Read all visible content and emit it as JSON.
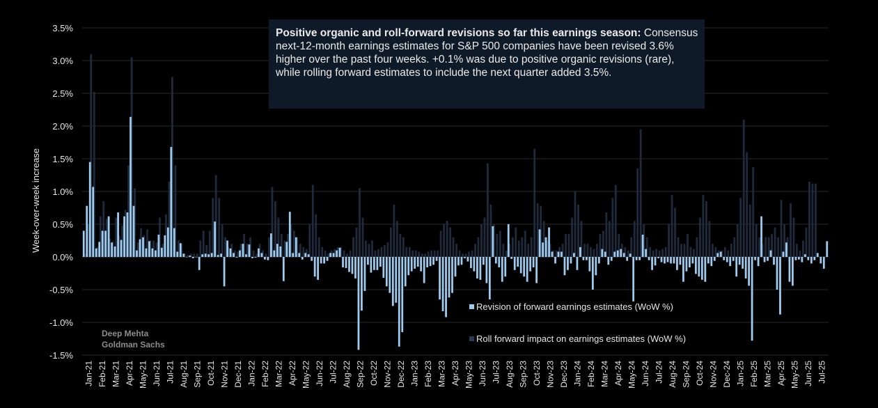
{
  "annotation": {
    "bold": "Positive organic and roll-forward revisions so far this earnings season:",
    "text": " Consensus next-12-month earnings estimates for S&P 500 companies have been revised 3.6% higher over the past four weeks. +0.1% was due to positive organic revisions (rare), while rolling forward estimates to include the next quarter added 3.5%."
  },
  "credit": [
    "Deep Mehta",
    "Goldman Sachs"
  ],
  "colors": {
    "organic": "#9ecbee",
    "rollforward": "#1f2b3c",
    "background": "#000000",
    "gridline": "#2a2a2a"
  },
  "chart_data": {
    "type": "bar",
    "title": "",
    "ylabel": "Week-over-week increase",
    "xlabel": "",
    "ylim": [
      -1.5,
      3.5
    ],
    "yticks": [
      3.5,
      3.0,
      2.5,
      2.0,
      1.5,
      1.0,
      0.5,
      0.0,
      -0.5,
      -1.0,
      -1.5
    ],
    "ytick_labels": [
      "3.5%",
      "3.0%",
      "2.5%",
      "2.0%",
      "1.5%",
      "1.0%",
      "0.5%",
      "0.0%",
      "-0.5%",
      "-1.0%",
      "-1.5%"
    ],
    "x_tick_labels": [
      "Jan-21",
      "Feb-21",
      "Mar-21",
      "Apr-21",
      "May-21",
      "Jun-21",
      "Jul-21",
      "Aug-21",
      "Sep-21",
      "Oct-21",
      "Nov-21",
      "Dec-21",
      "Jan-22",
      "Feb-22",
      "Mar-22",
      "Apr-22",
      "May-22",
      "Jun-22",
      "Jul-22",
      "Aug-22",
      "Sep-22",
      "Oct-22",
      "Nov-22",
      "Dec-22",
      "Jan-23",
      "Feb-23",
      "Mar-23",
      "Apr-23",
      "May-23",
      "Jun-23",
      "Jul-23",
      "Aug-23",
      "Sep-23",
      "Oct-23",
      "Nov-23",
      "Dec-23",
      "Jan-24",
      "Feb-24",
      "Mar-24",
      "Apr-24",
      "May-24",
      "Jun-24",
      "Jul-24",
      "Aug-24",
      "Sep-24",
      "Oct-24",
      "Nov-24",
      "Dec-24",
      "Jan-25",
      "Feb-25",
      "Mar-25",
      "Apr-25",
      "May-25",
      "Jun-25",
      "Jul-25"
    ],
    "legend": [
      {
        "name": "Revision of forward earnings estimates (WoW %)",
        "color": "#9ecbee"
      },
      {
        "name": "Roll forward impact on earnings estimates (WoW %)",
        "color": "#1f2b3c"
      }
    ],
    "series": [
      {
        "name": "Revision of forward earnings estimates (WoW %)",
        "values": [
          0.4,
          0.78,
          1.45,
          1.07,
          0.13,
          0.23,
          0.4,
          0.4,
          0.62,
          0.22,
          0.16,
          0.68,
          0.26,
          0.62,
          0.68,
          2.14,
          0.78,
          0.1,
          0.27,
          0.3,
          0.13,
          0.24,
          0.13,
          0.1,
          0.34,
          0.14,
          0.33,
          0.45,
          1.68,
          0.44,
          0.08,
          0.21,
          0.05,
          0,
          0.02,
          -0.02,
          0,
          -0.2,
          0.04,
          0.05,
          0.04,
          0.06,
          0.54,
          0.03,
          0.05,
          -0.45,
          0.25,
          0.13,
          0.06,
          -0.01,
          0.1,
          0.2,
          0.04,
          0.19,
          -0.02,
          -0.01,
          0.13,
          0.06,
          -0.04,
          -0.05,
          0.36,
          0.1,
          0.2,
          0.16,
          -0.37,
          0.23,
          0.69,
          0.06,
          0.3,
          0.06,
          -0.04,
          0.06,
          0.04,
          -0.06,
          -0.3,
          -0.35,
          -0.1,
          -0.1,
          -0.06,
          0.06,
          0.06,
          0.1,
          0.14,
          -0.16,
          -0.17,
          -0.23,
          -0.26,
          -0.33,
          -1.42,
          -0.82,
          -0.52,
          -0.12,
          -0.24,
          -0.2,
          -0.2,
          -0.15,
          -0.32,
          -0.45,
          -0.55,
          -0.75,
          -0.7,
          -1.37,
          -1.15,
          -0.45,
          -0.28,
          -0.22,
          -0.18,
          -0.15,
          -0.22,
          -0.4,
          -0.16,
          -0.14,
          -0.12,
          -0.06,
          -0.65,
          -0.83,
          -0.92,
          -0.62,
          -0.55,
          -0.3,
          -0.13,
          -0.12,
          -0.02,
          -0.07,
          -0.17,
          -0.22,
          -0.33,
          -0.35,
          -0.12,
          -0.4,
          -0.65,
          0.47,
          -0.1,
          -0.16,
          -0.38,
          -0.3,
          0.5,
          -0.03,
          -0.2,
          -0.15,
          -0.25,
          -0.3,
          -0.38,
          -0.22,
          -0.16,
          -0.4,
          0.42,
          0.22,
          0.3,
          0.45,
          0.08,
          -0.1,
          0.08,
          0.08,
          -0.28,
          -0.2,
          -0.1,
          0.06,
          -0.2,
          0.15,
          -0.05,
          -0.05,
          -0.22,
          -0.5,
          -0.28,
          -0.1,
          0.12,
          0.08,
          -0.12,
          -0.06,
          0.08,
          0.1,
          0.12,
          0.06,
          -0.06,
          0.05,
          -0.68,
          -0.05,
          -0.05,
          0.34,
          0.12,
          -0.05,
          -0.2,
          -0.13,
          -0.02,
          -0.08,
          -0.1,
          -0.08,
          -0.1,
          -0.1,
          -0.2,
          -0.12,
          -0.38,
          -0.22,
          -0.16,
          -0.1,
          -0.26,
          -0.3,
          -0.35,
          -0.38,
          -0.1,
          -0.14,
          -0.06,
          0.06,
          0.08,
          -0.05,
          -0.08,
          -0.14,
          -0.06,
          -0.3,
          -0.12,
          -0.18,
          -0.33,
          -0.44,
          -1.28,
          -0.05,
          -0.14,
          0.62,
          -0.08,
          -0.06,
          0.1,
          -0.12,
          -0.5,
          -0.88,
          0.08,
          0.22,
          -0.38,
          -0.44,
          -0.05,
          -0.04,
          -0.08,
          0.04,
          -0.05,
          -0.1,
          -0.05,
          0.06,
          -0.1,
          -0.18,
          0.24
        ]
      },
      {
        "name": "Roll forward impact on earnings estimates (WoW %)",
        "values": [
          0.05,
          0.5,
          3.1,
          2.52,
          0.15,
          0.62,
          0.85,
          0.58,
          0.28,
          0.24,
          0.6,
          0.32,
          0.48,
          0.72,
          1.4,
          3.05,
          1.05,
          0.22,
          0.44,
          0.33,
          0.42,
          0.25,
          0.25,
          0.22,
          0.6,
          0.2,
          0.65,
          1.15,
          2.75,
          1.4,
          0.25,
          0.2,
          0.05,
          0.03,
          0.05,
          0.05,
          0.05,
          0.25,
          0.4,
          0.18,
          0.4,
          0.9,
          1.25,
          0.9,
          0.5,
          0.3,
          0.15,
          0.2,
          0.1,
          0.08,
          0.2,
          0.35,
          0.2,
          0.3,
          0.1,
          0.05,
          0.2,
          0.1,
          0.05,
          0.3,
          1.07,
          0.85,
          0.6,
          0.35,
          0.25,
          0.35,
          0.5,
          0.4,
          0.3,
          0.2,
          0.15,
          0.12,
          0.5,
          1.1,
          0.65,
          0.3,
          0.15,
          0.1,
          0.05,
          0.1,
          0.12,
          0.15,
          0.15,
          0.1,
          0.05,
          0.1,
          0.3,
          0.45,
          1.05,
          0.6,
          0.25,
          0.2,
          0.25,
          0.1,
          0.12,
          0.15,
          0.18,
          0.22,
          0.45,
          0.8,
          0.55,
          0.35,
          0.3,
          0.15,
          0.15,
          0.1,
          0.1,
          0.08,
          0.05,
          0.05,
          0.08,
          0.1,
          0.1,
          0.1,
          0.4,
          0.5,
          0.55,
          0.45,
          0.3,
          0.2,
          0.1,
          0.05,
          0.05,
          0.08,
          0.1,
          0.2,
          0.3,
          0.5,
          0.6,
          1.43,
          0.8,
          0.5,
          0.35,
          0.4,
          0.2,
          0.1,
          0.2,
          0.3,
          0.45,
          0.25,
          0.3,
          0.4,
          0.2,
          0.3,
          1.65,
          0.82,
          0.78,
          0.55,
          0.25,
          0.2,
          0.1,
          0.1,
          0.15,
          0.2,
          0.35,
          0.35,
          0.6,
          1.0,
          0.8,
          0.55,
          0.2,
          0.2,
          0.15,
          0.12,
          0.2,
          0.35,
          0.4,
          0.68,
          0.55,
          0.9,
          1.1,
          0.35,
          0.2,
          0.15,
          0.1,
          0.3,
          0.55,
          1.35,
          1.95,
          0.5,
          0.3,
          0.15,
          0.1,
          0.12,
          0.1,
          0.12,
          0.15,
          0.5,
          0.95,
          0.75,
          0.3,
          0.2,
          0.2,
          0.35,
          0.15,
          0.12,
          0.3,
          0.6,
          0.95,
          0.85,
          0.55,
          0.2,
          0.15,
          0.1,
          0.1,
          0.15,
          0.1,
          0.2,
          0.3,
          0.5,
          0.9,
          2.1,
          1.6,
          0.8,
          1.37,
          0.5,
          0.3,
          0.2,
          0.3,
          0.3,
          0.35,
          0.45,
          0.3,
          0.87,
          0.5,
          0.3,
          0.82,
          0.6,
          0.2,
          0.1,
          0.25,
          0.45,
          1.15,
          1.12,
          1.12
        ]
      }
    ]
  }
}
